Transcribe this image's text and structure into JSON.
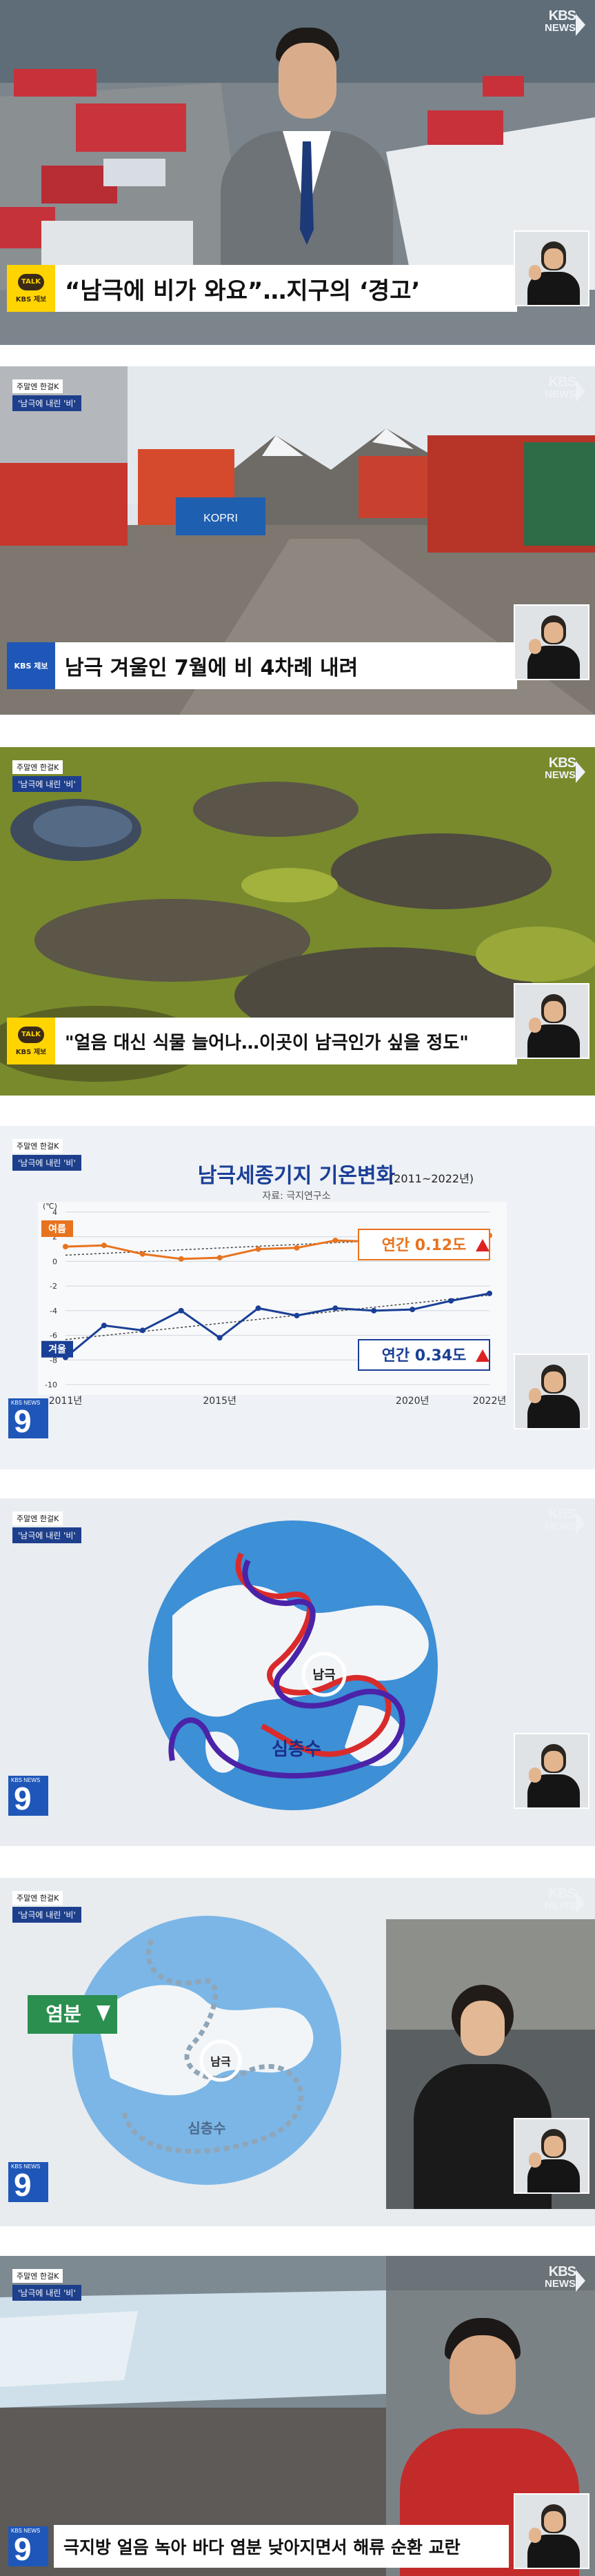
{
  "channel": {
    "logo_line1": "KBS",
    "logo_line2": "NEWS"
  },
  "segment_tag": {
    "line1": "주말엔 한걸K",
    "line2": "'남극에 내린 '비'"
  },
  "frames": [
    {
      "caption": "“남극에 비가 와요”…지구의 ‘경고’",
      "badge": "kakao",
      "badge_text": "KBS 제보"
    },
    {
      "caption": "남극 겨울인 7월에 비 4차례 내려",
      "badge": "blue",
      "badge_text": "KBS 제보",
      "container_label": "KOPRI"
    },
    {
      "caption": "\"얼음 대신 식물 늘어나…이곳이 남극인가 싶을 정도\"",
      "badge": "kakao",
      "badge_text": "KBS 제보"
    },
    {
      "badge": "nine",
      "badge_text": "KBS NEWS"
    },
    {
      "badge": "nine",
      "badge_text": "KBS NEWS",
      "map_labels": {
        "pole": "남극",
        "current": "심층수"
      }
    },
    {
      "badge": "nine",
      "badge_text": "KBS NEWS",
      "map_labels": {
        "pole": "남극",
        "current": "심층수",
        "salinity": "염분"
      }
    },
    {
      "caption": "극지방 얼음 녹아 바다 염분 낮아지면서 해류 순환 교란",
      "badge": "nine",
      "badge_text": "KBS NEWS"
    }
  ],
  "chart_data": {
    "type": "line",
    "title": "남극세종기지 기온변화",
    "subtitle": "(2011~2022년)",
    "source": "자료: 극지연구소",
    "ylabel": "(℃)",
    "ylim": [
      -10,
      4
    ],
    "yticks": [
      4,
      2,
      0,
      -2,
      -4,
      -6,
      -8,
      -10
    ],
    "xlim": [
      2011,
      2022
    ],
    "xticks": [
      2011,
      2015,
      2020,
      2022
    ],
    "series": [
      {
        "name": "여름",
        "color": "#e8731e",
        "x": [
          2011,
          2012,
          2013,
          2014,
          2015,
          2016,
          2017,
          2018,
          2019,
          2020,
          2021,
          2022
        ],
        "values": [
          1.2,
          1.3,
          0.6,
          0.2,
          0.3,
          1.0,
          1.1,
          1.7,
          1.6,
          2.3,
          2.2,
          2.1
        ],
        "trend": "연간 0.12도"
      },
      {
        "name": "겨울",
        "color": "#1a3f96",
        "x": [
          2011,
          2012,
          2013,
          2014,
          2015,
          2016,
          2017,
          2018,
          2019,
          2020,
          2021,
          2022
        ],
        "values": [
          -7.8,
          -5.2,
          -5.6,
          -4.0,
          -6.2,
          -3.8,
          -4.4,
          -3.8,
          -4.0,
          -3.9,
          -3.2,
          -2.6
        ],
        "trend": "연간 0.34도"
      }
    ],
    "grid": true,
    "legend": "inline-labels"
  }
}
